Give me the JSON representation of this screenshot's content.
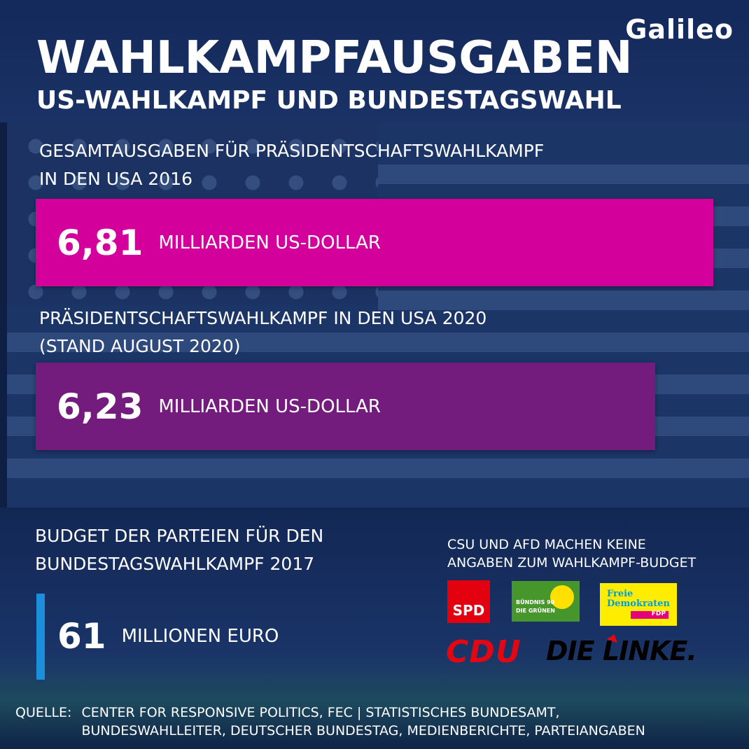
{
  "brand": {
    "logo_text": "Galileo"
  },
  "header": {
    "title": "WAHLKAMPFAUSGABEN",
    "subtitle": "US-WAHLKAMPF UND BUNDESTAGSWAHL"
  },
  "us_2016": {
    "label": "GESAMTAUSGABEN FÜR PRÄSIDENTSCHAFTSWAHLKAMPF\nIN DEN USA 2016",
    "value": "6,81",
    "unit": "MILLIARDEN US-DOLLAR",
    "color": "#d4009b"
  },
  "us_2020": {
    "label": "PRÄSIDENTSCHAFTSWAHLKAMPF IN DEN USA 2020\n(STAND AUGUST 2020)",
    "value": "6,23",
    "unit": "MILLIARDEN US-DOLLAR",
    "color": "#741c7d"
  },
  "germany_2017": {
    "label": "BUDGET DER PARTEIEN FÜR DEN\nBUNDESTAGSWAHLKAMPF 2017",
    "value": "61",
    "unit": "MILLIONEN EURO",
    "accent": "#1c8fdc"
  },
  "note": {
    "text": "CSU UND AFD MACHEN KEINE\nANGABEN ZUM WAHLKAMPF-BUDGET"
  },
  "parties": {
    "spd": "SPD",
    "gruene_line1": "BÜNDNIS 90",
    "gruene_line2": "DIE GRÜNEN",
    "fdp_line1": "Freie",
    "fdp_line2": "Demokraten",
    "fdp_abbr": "FDP",
    "cdu": "CDU",
    "linke": "DIE LINKE."
  },
  "source": {
    "key": "QUELLE:",
    "value": "CENTER FOR RESPONSIVE POLITICS, FEC | STATISTISCHES BUNDESAMT,\nBUNDESWAHLLEITER, DEUTSCHER BUNDESTAG, MEDIENBERICHTE, PARTEIANGABEN"
  }
}
